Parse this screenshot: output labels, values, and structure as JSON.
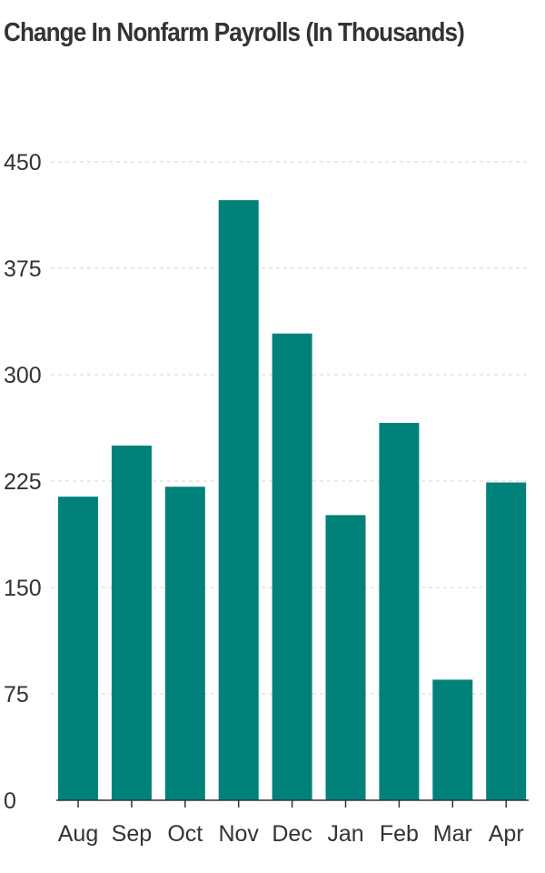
{
  "chart_data": {
    "type": "bar",
    "title": "Change In Nonfarm Payrolls (In Thousands)",
    "xlabel": "",
    "ylabel": "",
    "categories": [
      "Aug",
      "Sep",
      "Oct",
      "Nov",
      "Dec",
      "Jan",
      "Feb",
      "Mar",
      "Apr"
    ],
    "values": [
      214,
      250,
      221,
      423,
      329,
      201,
      266,
      85,
      224
    ],
    "ylim": [
      0,
      450
    ],
    "yticks": [
      0,
      75,
      150,
      225,
      300,
      375,
      450
    ],
    "grid": true,
    "legend": "none",
    "bar_color": "#00827b",
    "grid_color": "#d6d6d6",
    "axis_color": "#333333",
    "text_color": "#333333"
  }
}
